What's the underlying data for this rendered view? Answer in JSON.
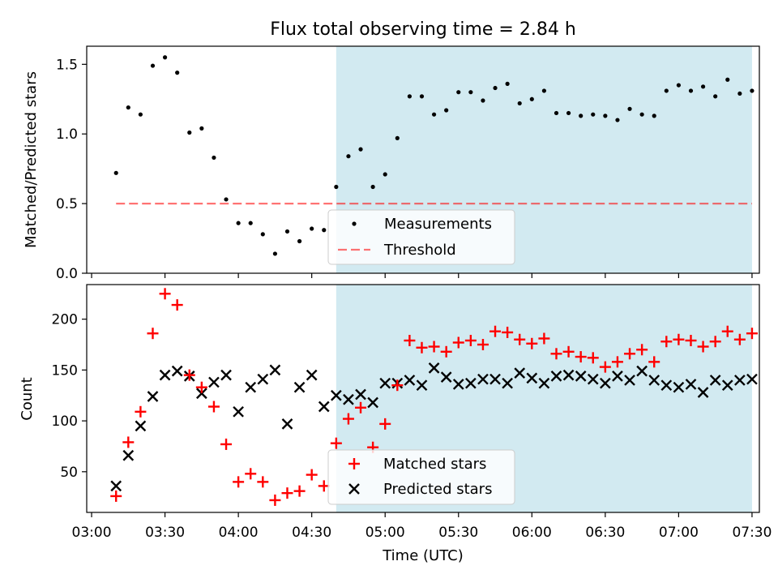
{
  "title": "Flux total observing time = 2.84 h",
  "colors": {
    "shade": "#add8e6",
    "threshold": "#ff0000",
    "measurements": "#000000",
    "matched": "#ff0000",
    "predicted": "#000000"
  },
  "chart_data": [
    {
      "type": "scatter",
      "panel": "top",
      "title": "Flux total observing time = 2.84 h",
      "ylabel": "Matched/Predicted stars",
      "xlabel": "",
      "xlim": [
        "02:58",
        "07:33"
      ],
      "ylim": [
        0,
        1.63
      ],
      "yticks": [
        "0.0",
        "0.5",
        "1.0",
        "1.5"
      ],
      "ytick_values": [
        0,
        0.5,
        1.0,
        1.5
      ],
      "shaded_interval": [
        "04:40",
        "07:30"
      ],
      "legend_placement": "lower-center",
      "series": [
        {
          "name": "Measurements",
          "marker": "dot",
          "x": [
            "03:10",
            "03:15",
            "03:20",
            "03:25",
            "03:30",
            "03:35",
            "03:40",
            "03:45",
            "03:50",
            "03:55",
            "04:00",
            "04:05",
            "04:10",
            "04:15",
            "04:20",
            "04:25",
            "04:30",
            "04:35",
            "04:40",
            "04:45",
            "04:50",
            "04:55",
            "05:00",
            "05:05",
            "05:10",
            "05:15",
            "05:20",
            "05:25",
            "05:30",
            "05:35",
            "05:40",
            "05:45",
            "05:50",
            "05:55",
            "06:00",
            "06:05",
            "06:10",
            "06:15",
            "06:20",
            "06:25",
            "06:30",
            "06:35",
            "06:40",
            "06:45",
            "06:50",
            "06:55",
            "07:00",
            "07:05",
            "07:10",
            "07:15",
            "07:20",
            "07:25",
            "07:30"
          ],
          "y": [
            0.72,
            1.19,
            1.14,
            1.49,
            1.55,
            1.44,
            1.01,
            1.04,
            0.83,
            0.53,
            0.36,
            0.36,
            0.28,
            0.14,
            0.3,
            0.23,
            0.32,
            0.31,
            0.62,
            0.84,
            0.89,
            0.62,
            0.71,
            0.97,
            1.27,
            1.27,
            1.14,
            1.17,
            1.3,
            1.3,
            1.24,
            1.33,
            1.36,
            1.22,
            1.25,
            1.31,
            1.15,
            1.15,
            1.13,
            1.14,
            1.13,
            1.1,
            1.18,
            1.14,
            1.13,
            1.31,
            1.35,
            1.31,
            1.34,
            1.27,
            1.39,
            1.29,
            1.31
          ]
        },
        {
          "name": "Threshold",
          "marker": "dashed-line",
          "x": [
            "03:10",
            "07:30"
          ],
          "y": [
            0.5,
            0.5
          ]
        }
      ]
    },
    {
      "type": "scatter",
      "panel": "bottom",
      "title": "",
      "ylabel": "Count",
      "xlabel": "Time (UTC)",
      "xlim": [
        "02:58",
        "07:33"
      ],
      "ylim": [
        10,
        234
      ],
      "yticks": [
        "50",
        "100",
        "150",
        "200"
      ],
      "ytick_values": [
        50,
        100,
        150,
        200
      ],
      "xticks": [
        "03:00",
        "03:30",
        "04:00",
        "04:30",
        "05:00",
        "05:30",
        "06:00",
        "06:30",
        "07:00",
        "07:30"
      ],
      "shaded_interval": [
        "04:40",
        "07:30"
      ],
      "legend_placement": "lower-center",
      "series": [
        {
          "name": "Matched stars",
          "marker": "plus",
          "x": [
            "03:10",
            "03:15",
            "03:20",
            "03:25",
            "03:30",
            "03:35",
            "03:40",
            "03:45",
            "03:50",
            "03:55",
            "04:00",
            "04:05",
            "04:10",
            "04:15",
            "04:20",
            "04:25",
            "04:30",
            "04:35",
            "04:40",
            "04:45",
            "04:50",
            "04:55",
            "05:00",
            "05:05",
            "05:10",
            "05:15",
            "05:20",
            "05:25",
            "05:30",
            "05:35",
            "05:40",
            "05:45",
            "05:50",
            "05:55",
            "06:00",
            "06:05",
            "06:10",
            "06:15",
            "06:20",
            "06:25",
            "06:30",
            "06:35",
            "06:40",
            "06:45",
            "06:50",
            "06:55",
            "07:00",
            "07:05",
            "07:10",
            "07:15",
            "07:20",
            "07:25",
            "07:30"
          ],
          "y": [
            26,
            79,
            109,
            186,
            225,
            214,
            145,
            133,
            114,
            77,
            40,
            48,
            40,
            22,
            29,
            31,
            47,
            36,
            78,
            102,
            113,
            74,
            97,
            135,
            179,
            172,
            173,
            168,
            177,
            179,
            175,
            188,
            187,
            180,
            176,
            181,
            166,
            168,
            163,
            162,
            153,
            158,
            166,
            170,
            158,
            178,
            180,
            179,
            173,
            178,
            188,
            180,
            186
          ]
        },
        {
          "name": "Predicted stars",
          "marker": "x",
          "x": [
            "03:10",
            "03:15",
            "03:20",
            "03:25",
            "03:30",
            "03:35",
            "03:40",
            "03:45",
            "03:50",
            "03:55",
            "04:00",
            "04:05",
            "04:10",
            "04:15",
            "04:20",
            "04:25",
            "04:30",
            "04:35",
            "04:40",
            "04:45",
            "04:50",
            "04:55",
            "05:00",
            "05:05",
            "05:10",
            "05:15",
            "05:20",
            "05:25",
            "05:30",
            "05:35",
            "05:40",
            "05:45",
            "05:50",
            "05:55",
            "06:00",
            "06:05",
            "06:10",
            "06:15",
            "06:20",
            "06:25",
            "06:30",
            "06:35",
            "06:40",
            "06:45",
            "06:50",
            "06:55",
            "07:00",
            "07:05",
            "07:10",
            "07:15",
            "07:20",
            "07:25",
            "07:30"
          ],
          "y": [
            36,
            66,
            95,
            124,
            145,
            149,
            144,
            127,
            138,
            145,
            109,
            133,
            141,
            150,
            97,
            133,
            145,
            114,
            125,
            121,
            126,
            118,
            137,
            137,
            140,
            135,
            152,
            143,
            136,
            137,
            141,
            141,
            137,
            147,
            142,
            137,
            144,
            145,
            144,
            141,
            137,
            144,
            140,
            149,
            140,
            135,
            133,
            136,
            128,
            140,
            135,
            140,
            141
          ]
        }
      ]
    }
  ]
}
